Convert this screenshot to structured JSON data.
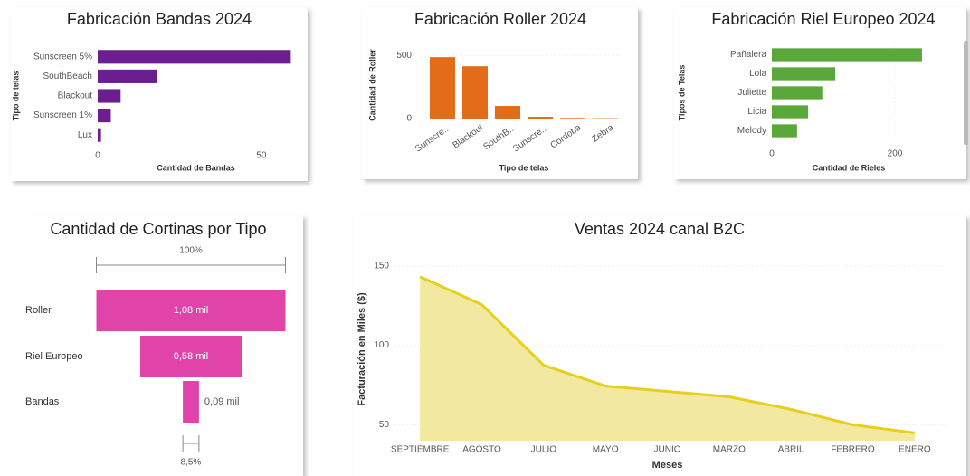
{
  "chart_data": [
    {
      "type": "hbar",
      "title": "Fabricación Bandas 2024",
      "x_label": "Cantidad de Bandas",
      "y_label": "Tipo de telas",
      "categories": [
        "Sunscreen 5%",
        "SouthBeach",
        "Blackout",
        "Sunscreen 1%",
        "Lux"
      ],
      "values": [
        59,
        18,
        7,
        4,
        1
      ],
      "color": "#6b1f8e",
      "xlim": [
        0,
        60
      ],
      "xticks": [
        0,
        50
      ],
      "grid": true
    },
    {
      "type": "bar",
      "title": "Fabricación Roller 2024",
      "x_label": "Tipo de telas",
      "y_label": "Cantidad de Roller",
      "categories": [
        "Sunscre...",
        "Blackout",
        "SouthB...",
        "Sunscre...",
        "Cordoba",
        "Zebra"
      ],
      "values": [
        486,
        414,
        100,
        14,
        5,
        3
      ],
      "color": "#e36c1a",
      "ylim": [
        0,
        530
      ],
      "yticks": [
        0,
        500
      ],
      "grid": true
    },
    {
      "type": "hbar",
      "title": "Fabricación Riel Europeo 2024",
      "x_label": "Cantidad de Rieles",
      "y_label": "Tipos de Telas",
      "categories": [
        "Pañalera",
        "Lola",
        "Juliette",
        "Licia",
        "Melody"
      ],
      "values": [
        244,
        103,
        82,
        59,
        41
      ],
      "color": "#5aa83a",
      "xlim": [
        0,
        250
      ],
      "xticks": [
        0,
        200
      ],
      "grid": true
    },
    {
      "type": "funnel",
      "title": "Cantidad de Cortinas por Tipo",
      "categories": [
        "Roller",
        "Riel Europeo",
        "Bandas"
      ],
      "values": [
        1080,
        580,
        92
      ],
      "value_labels": [
        "1,08 mil",
        "0,58 mil",
        "0,09 mil"
      ],
      "top_label": "100%",
      "bottom_label": "8,5%",
      "color": "#e044a8"
    },
    {
      "type": "area",
      "title": "Ventas 2024 canal B2C",
      "x_label": "Meses",
      "y_label": "Facturación en Miles ($)",
      "categories": [
        "SEPTIEMBRE",
        "AGOSTO",
        "JULIO",
        "MAYO",
        "JUNIO",
        "MARZO",
        "ABRIL",
        "FEBRERO",
        "ENERO"
      ],
      "values": [
        143.2,
        125.6,
        87.5,
        74.4,
        71,
        67.6,
        59.7,
        50,
        44.9
      ],
      "color": "#e6cf1f",
      "fill": "#f3e8a0",
      "ylim": [
        40,
        155
      ],
      "yticks": [
        50,
        100,
        150
      ],
      "grid": true
    }
  ]
}
